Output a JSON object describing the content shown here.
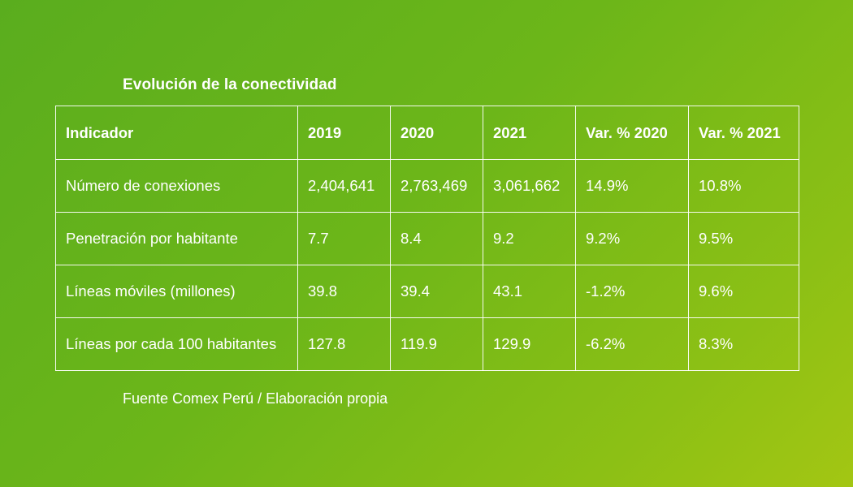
{
  "chart_data": {
    "type": "table",
    "title": "Evolución de la conectividad",
    "columns": [
      "Indicador",
      "2019",
      "2020",
      "2021",
      "Var. % 2020",
      "Var. % 2021"
    ],
    "rows": [
      [
        "Número de conexiones",
        "2,404,641",
        "2,763,469",
        "3,061,662",
        "14.9%",
        "10.8%"
      ],
      [
        "Penetración por habitante",
        "7.7",
        "8.4",
        "9.2",
        "9.2%",
        "9.5%"
      ],
      [
        "Líneas móviles (millones)",
        "39.8",
        "39.4",
        "43.1",
        "-1.2%",
        "9.6%"
      ],
      [
        "Líneas por cada 100 habitantes",
        "127.8",
        "119.9",
        "129.9",
        "-6.2%",
        "8.3%"
      ]
    ],
    "source": "Fuente Comex Perú / Elaboración propia"
  },
  "colors": {
    "background_start": "#5aad1e",
    "background_end": "#a3c613",
    "text": "#ffffff",
    "grid": "#ffffff"
  }
}
